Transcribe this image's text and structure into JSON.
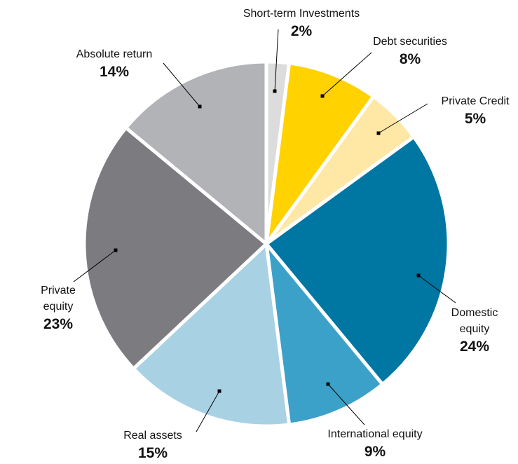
{
  "chart_data": {
    "type": "pie",
    "categories": [
      "Short-term Investments",
      "Debt securities",
      "Private Credit",
      "Domestic equity",
      "International equity",
      "Real assets",
      "Private equity",
      "Absolute return"
    ],
    "values": [
      2,
      8,
      5,
      24,
      9,
      15,
      23,
      14
    ],
    "value_labels": [
      "2%",
      "8%",
      "5%",
      "24%",
      "9%",
      "15%",
      "23%",
      "14%"
    ],
    "colors": [
      "#dcdcdc",
      "#ffd200",
      "#ffe7a6",
      "#0076a3",
      "#3ba1c8",
      "#a9d1e4",
      "#7b7b80",
      "#b1b3b6"
    ]
  }
}
